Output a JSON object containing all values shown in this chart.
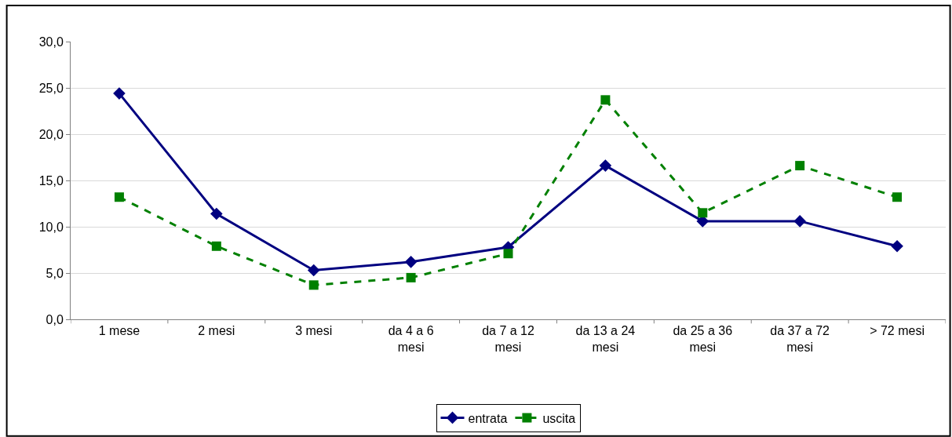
{
  "chart_data": {
    "type": "line",
    "categories": [
      "1 mese",
      "2 mesi",
      "3 mesi",
      "da 4 a 6 mesi",
      "da 7 a 12 mesi",
      "da 13 a 24 mesi",
      "da 25 a 36 mesi",
      "da 37 a 72 mesi",
      "> 72 mesi"
    ],
    "series": [
      {
        "name": "entrata",
        "color": "#000080",
        "values": [
          24.4,
          11.4,
          5.3,
          6.2,
          7.8,
          16.6,
          10.6,
          10.6,
          7.9
        ],
        "marker": "diamond",
        "line_style": "solid"
      },
      {
        "name": "uscita",
        "color": "#008000",
        "values": [
          13.2,
          7.9,
          3.7,
          4.5,
          7.1,
          23.7,
          11.5,
          16.6,
          13.2
        ],
        "marker": "square",
        "line_style": "dashed"
      }
    ],
    "ylim": [
      0,
      30
    ],
    "yticks": [
      {
        "value": 0,
        "label": "0,0"
      },
      {
        "value": 5,
        "label": "5,0"
      },
      {
        "value": 10,
        "label": "10,0"
      },
      {
        "value": 15,
        "label": "15,0"
      },
      {
        "value": 20,
        "label": "20,0"
      },
      {
        "value": 25,
        "label": "25,0"
      },
      {
        "value": 30,
        "label": "30,0"
      }
    ],
    "grid": "y",
    "legend": "bottom"
  }
}
